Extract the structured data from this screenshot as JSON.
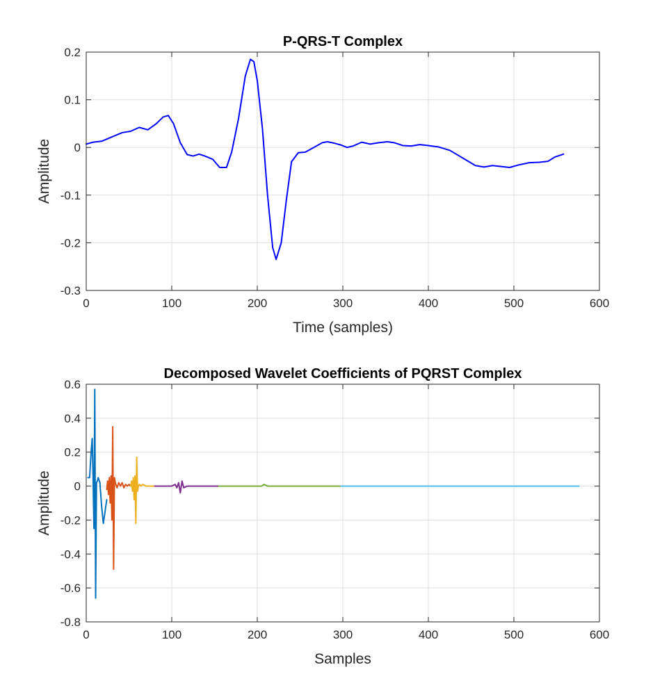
{
  "chart_data": [
    {
      "type": "line",
      "title": "P-QRS-T Complex",
      "xlabel": "Time (samples)",
      "ylabel": "Amplitude",
      "xlim": [
        0,
        600
      ],
      "ylim": [
        -0.3,
        0.2
      ],
      "xticks": [
        0,
        100,
        200,
        300,
        400,
        500,
        600
      ],
      "yticks": [
        -0.3,
        -0.2,
        -0.1,
        0,
        0.1,
        0.2
      ],
      "xtick_labels": [
        "0",
        "100",
        "200",
        "300",
        "400",
        "500",
        "600"
      ],
      "ytick_labels": [
        "-0.3",
        "-0.2",
        "-0.1",
        "0",
        "0.1",
        "0.2"
      ],
      "grid": true,
      "series": [
        {
          "color": "#0000ff",
          "x": [
            0,
            8,
            18,
            30,
            42,
            52,
            62,
            72,
            82,
            90,
            96,
            102,
            110,
            118,
            125,
            132,
            140,
            148,
            156,
            164,
            170,
            178,
            186,
            192,
            196,
            200,
            206,
            212,
            218,
            222,
            228,
            234,
            240,
            248,
            256,
            266,
            276,
            282,
            290,
            298,
            305,
            312,
            322,
            332,
            342,
            352,
            360,
            370,
            380,
            390,
            400,
            412,
            425,
            440,
            455,
            465,
            475,
            485,
            495,
            505,
            518,
            530,
            540,
            548,
            558
          ],
          "y": [
            0.007,
            0.011,
            0.013,
            0.022,
            0.031,
            0.034,
            0.042,
            0.037,
            0.05,
            0.064,
            0.067,
            0.05,
            0.01,
            -0.015,
            -0.018,
            -0.014,
            -0.019,
            -0.025,
            -0.042,
            -0.042,
            -0.01,
            0.06,
            0.15,
            0.185,
            0.18,
            0.14,
            0.04,
            -0.1,
            -0.21,
            -0.235,
            -0.2,
            -0.11,
            -0.03,
            -0.011,
            -0.01,
            0.0,
            0.01,
            0.012,
            0.009,
            0.005,
            0.0,
            0.003,
            0.011,
            0.007,
            0.01,
            0.012,
            0.01,
            0.004,
            0.003,
            0.006,
            0.004,
            0.001,
            -0.006,
            -0.022,
            -0.038,
            -0.041,
            -0.038,
            -0.04,
            -0.042,
            -0.037,
            -0.032,
            -0.031,
            -0.029,
            -0.02,
            -0.014
          ]
        }
      ]
    },
    {
      "type": "line",
      "title": "Decomposed Wavelet Coefficients of PQRST Complex",
      "xlabel": "Samples",
      "ylabel": "Amplitude",
      "xlim": [
        0,
        600
      ],
      "ylim": [
        -0.8,
        0.6
      ],
      "xticks": [
        0,
        100,
        200,
        300,
        400,
        500,
        600
      ],
      "yticks": [
        -0.8,
        -0.6,
        -0.4,
        -0.2,
        0,
        0.2,
        0.4,
        0.6
      ],
      "xtick_labels": [
        "0",
        "100",
        "200",
        "300",
        "400",
        "500",
        "600"
      ],
      "ytick_labels": [
        "-0.8",
        "-0.6",
        "-0.4",
        "-0.2",
        "0",
        "0.2",
        "0.4",
        "0.6"
      ],
      "grid": true,
      "series": [
        {
          "color": "#0072bd",
          "x": [
            2,
            4,
            5,
            6,
            7,
            8,
            9,
            10,
            11,
            12,
            13,
            14,
            16,
            18,
            20,
            22,
            24
          ],
          "y": [
            0.05,
            0.05,
            0.14,
            0.22,
            0.28,
            0.05,
            -0.25,
            0.57,
            -0.66,
            0.02,
            0.03,
            0.05,
            0.02,
            -0.12,
            -0.22,
            -0.15,
            -0.08
          ]
        },
        {
          "color": "#d95319",
          "x": [
            24,
            25,
            26,
            27,
            28,
            29,
            30,
            31,
            32,
            33,
            34,
            36,
            38,
            40,
            42,
            44,
            46,
            48,
            50,
            52
          ],
          "y": [
            -0.02,
            0.03,
            -0.05,
            0.05,
            -0.1,
            0.06,
            -0.2,
            0.35,
            -0.49,
            0.05,
            0.02,
            -0.01,
            0.02,
            0.0,
            0.02,
            -0.01,
            0.01,
            0.0,
            0.01,
            0.0
          ]
        },
        {
          "color": "#edb120",
          "x": [
            52,
            53,
            54,
            55,
            56,
            57,
            58,
            59,
            60,
            61,
            62,
            64,
            66,
            70,
            75,
            80
          ],
          "y": [
            0.0,
            0.03,
            -0.03,
            0.05,
            -0.08,
            0.06,
            -0.22,
            0.17,
            -0.03,
            0.0,
            0.01,
            0.0,
            0.01,
            0.0,
            0.0,
            0.0
          ]
        },
        {
          "color": "#7e2f8e",
          "x": [
            80,
            90,
            100,
            104,
            106,
            108,
            110,
            112,
            114,
            118,
            125,
            135,
            145,
            155
          ],
          "y": [
            0.0,
            0.0,
            0.0,
            0.01,
            -0.01,
            0.02,
            -0.04,
            0.03,
            -0.01,
            0.0,
            0.0,
            0.0,
            0.0,
            0.0
          ]
        },
        {
          "color": "#77ac30",
          "x": [
            155,
            170,
            190,
            200,
            205,
            208,
            212,
            220,
            240,
            260,
            280,
            298
          ],
          "y": [
            0.0,
            0.0,
            0.0,
            0.0,
            0.0,
            0.01,
            0.0,
            0.0,
            0.0,
            0.0,
            0.0,
            0.0
          ]
        },
        {
          "color": "#4dbeee",
          "x": [
            298,
            350,
            400,
            450,
            500,
            550,
            576
          ],
          "y": [
            0.0,
            0.0,
            0.0,
            0.0,
            0.0,
            0.0,
            0.0
          ]
        }
      ]
    }
  ]
}
